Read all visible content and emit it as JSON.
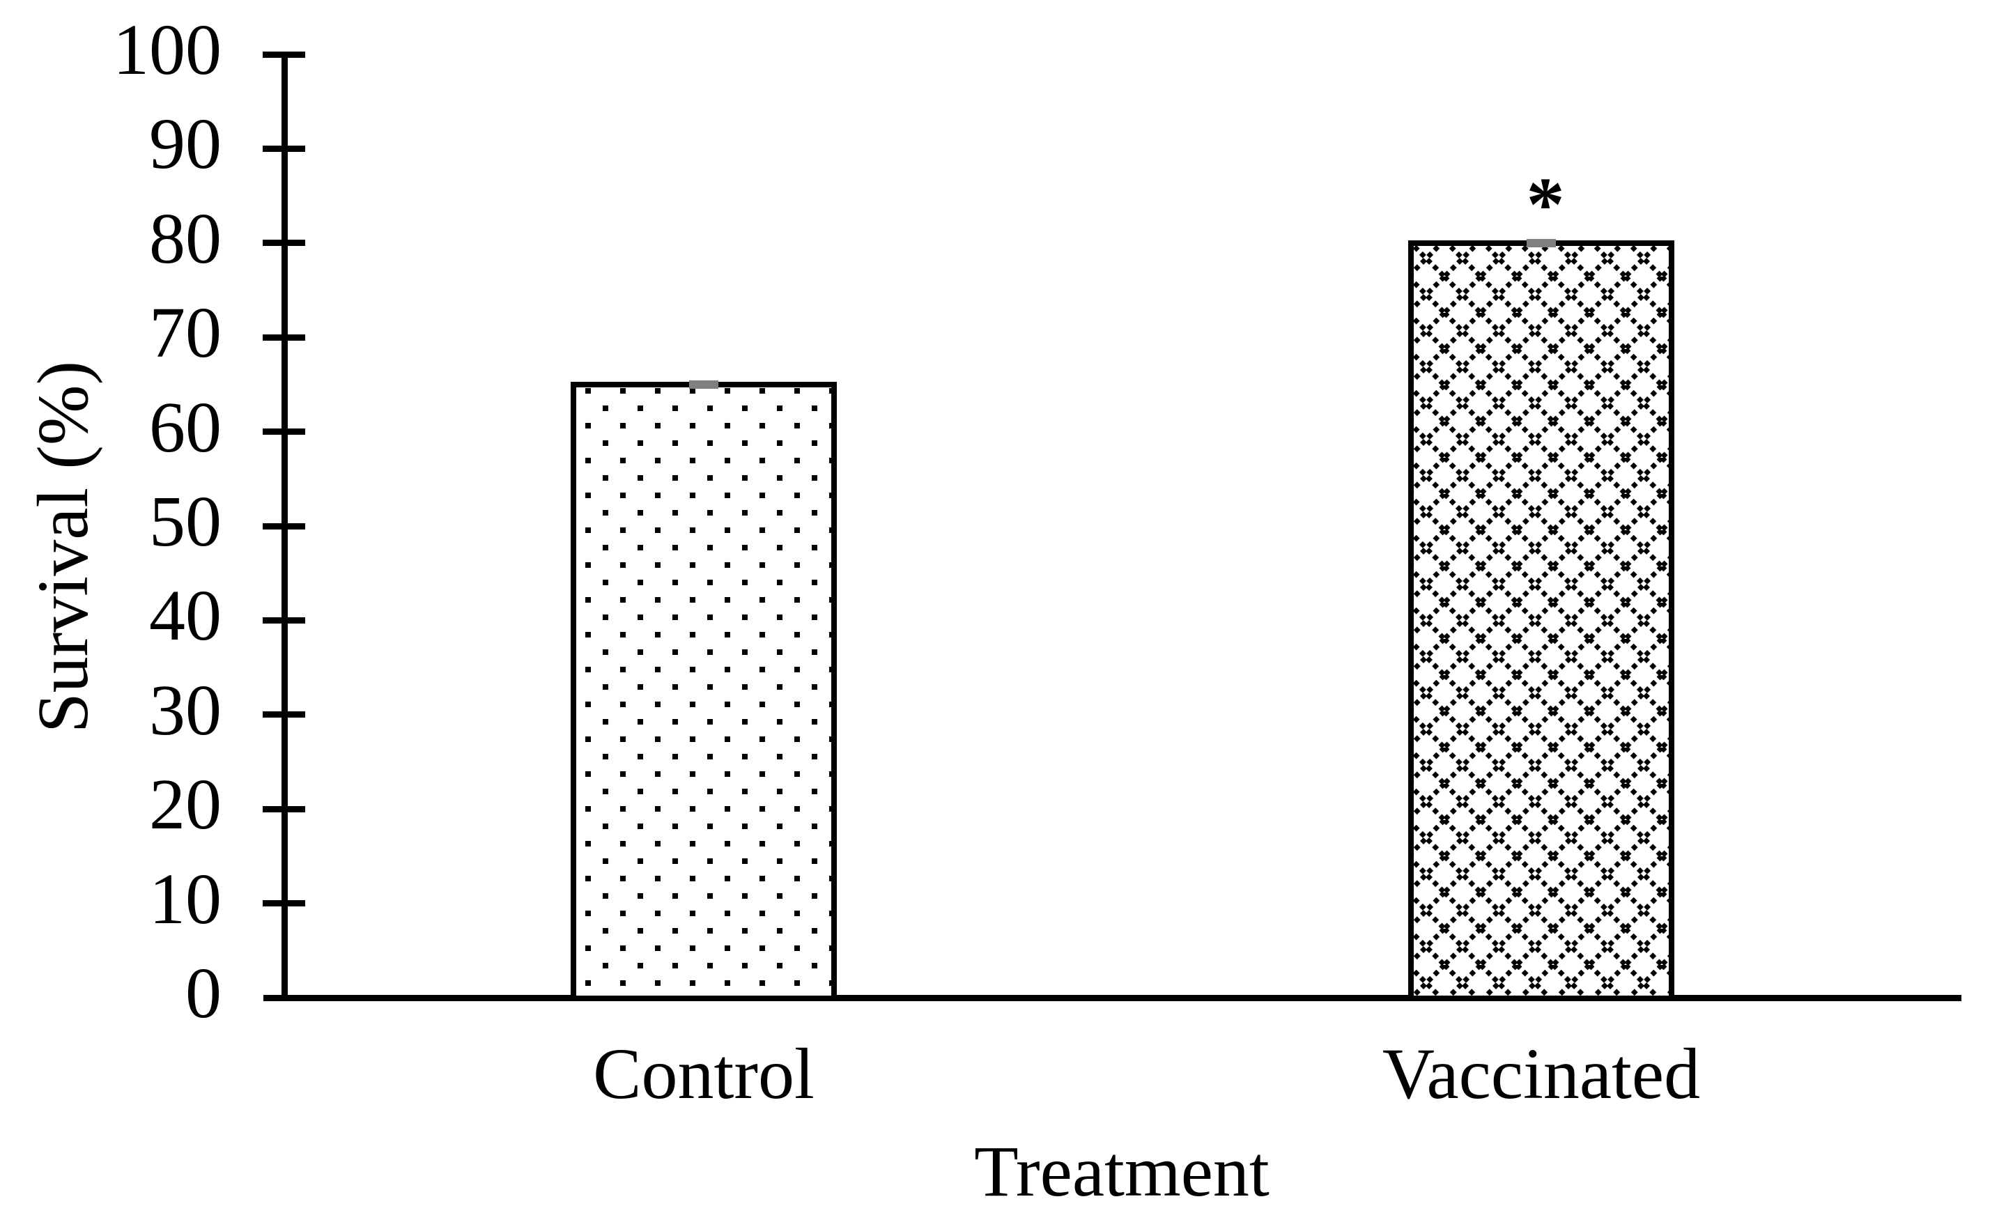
{
  "chart_data": {
    "type": "bar",
    "title": "",
    "xlabel": "Treatment",
    "ylabel": "Survival (%)",
    "categories": [
      "Control",
      "Vaccinated"
    ],
    "values": [
      65,
      80
    ],
    "ylim": [
      0,
      100
    ],
    "yticks": [
      0,
      10,
      20,
      30,
      40,
      50,
      60,
      70,
      80,
      90,
      100
    ],
    "grid": false,
    "legend_position": "none",
    "bar_fill_patterns": [
      "dotted",
      "diamond-crosshatch"
    ],
    "bar_fill_color": "#ffffff",
    "bar_outline_color": "#000000",
    "error_bars": {
      "visible": true,
      "cap_color": "#7f7f7f"
    },
    "annotations": [
      {
        "text": "*",
        "category": "Vaccinated"
      }
    ],
    "axis_color": "#000000",
    "background_color": "#ffffff"
  }
}
